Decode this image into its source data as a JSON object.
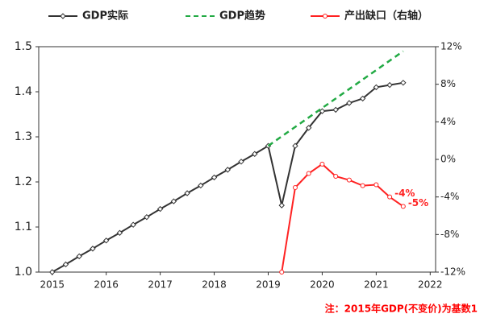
{
  "chart_data": {
    "type": "line",
    "series": [
      {
        "name": "GDP实际",
        "color": "#333333",
        "marker": "diamond",
        "dashed": false,
        "x": [
          2015,
          2015.25,
          2015.5,
          2015.75,
          2016,
          2016.25,
          2016.5,
          2016.75,
          2017,
          2017.25,
          2017.5,
          2017.75,
          2018,
          2018.25,
          2018.5,
          2018.75,
          2019,
          2019.25,
          2019.5,
          2019.75,
          2020,
          2020.25,
          2020.5,
          2020.75,
          2021,
          2021.25,
          2021.5
        ],
        "values": [
          1.0,
          1.017,
          1.035,
          1.052,
          1.07,
          1.087,
          1.105,
          1.122,
          1.14,
          1.157,
          1.175,
          1.192,
          1.21,
          1.227,
          1.245,
          1.262,
          1.28,
          1.148,
          1.28,
          1.32,
          1.357,
          1.36,
          1.375,
          1.385,
          1.41,
          1.415,
          1.42
        ]
      },
      {
        "name": "GDP趋势",
        "color": "#22aa44",
        "marker": null,
        "dashed": true,
        "x": [
          2019,
          2021.5
        ],
        "values": [
          1.28,
          1.49
        ]
      },
      {
        "name": "产出缺口（右轴）",
        "color": "#ff2222",
        "marker": "circle",
        "dashed": false,
        "axis": "y2",
        "x": [
          2019.25,
          2019.5,
          2019.75,
          2020,
          2020.25,
          2020.5,
          2020.75,
          2021,
          2021.25,
          2021.5
        ],
        "values": [
          -12,
          -3,
          -1.5,
          -0.5,
          -1.8,
          -2.2,
          -2.8,
          -2.7,
          -4,
          -5
        ],
        "value_labels": [
          null,
          null,
          null,
          null,
          null,
          null,
          null,
          null,
          "-4%",
          "-5%"
        ]
      }
    ],
    "xlim": [
      2014.75,
      2022.1
    ],
    "xticks": [
      2015,
      2016,
      2017,
      2018,
      2019,
      2020,
      2021,
      2022
    ],
    "ylim": [
      1.0,
      1.5
    ],
    "yticks": [
      {
        "value": 1.0,
        "label": "1.0"
      },
      1.1,
      1.2,
      1.3,
      1.4,
      {
        "value": 1.5,
        "label": "1.5"
      }
    ],
    "y2lim": [
      -12,
      12
    ],
    "y2ticks": [
      {
        "value": -12,
        "label": "-12%"
      },
      {
        "value": -8,
        "label": "-8%"
      },
      {
        "value": -4,
        "label": "-4%"
      },
      {
        "value": 0,
        "label": "0%"
      },
      {
        "value": 4,
        "label": "4%"
      },
      {
        "value": 8,
        "label": "8%"
      },
      {
        "value": 12,
        "label": "12%"
      }
    ],
    "note": "注：2015年GDP(不变价)为基数1"
  }
}
